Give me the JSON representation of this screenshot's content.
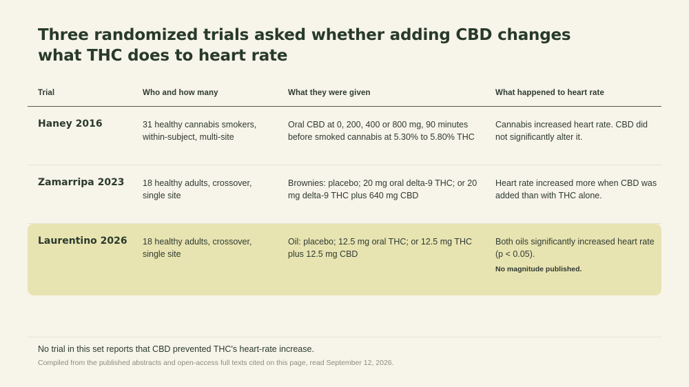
{
  "title": "Three randomized trials asked whether adding CBD changes what THC does to heart rate",
  "columns": [
    "Trial",
    "Who and how many",
    "What they were given",
    "What happened to heart rate"
  ],
  "rows": [
    {
      "trial": "Haney 2016",
      "who": "31 healthy cannabis smokers, within-subject, multi-site",
      "given": "Oral CBD at 0, 200, 400 or 800 mg, 90 minutes before smoked cannabis at 5.30% to 5.80% THC",
      "result": "Cannabis increased heart rate. CBD did not significantly alter it.",
      "note": ""
    },
    {
      "trial": "Zamarripa 2023",
      "who": "18 healthy adults, crossover, single site",
      "given": "Brownies: placebo; 20 mg oral delta-9 THC; or 20 mg delta-9 THC plus 640 mg CBD",
      "result": "Heart rate increased more when CBD was added than with THC alone.",
      "note": ""
    },
    {
      "trial": "Laurentino 2026",
      "who": "18 healthy adults, crossover, single site",
      "given": "Oil: placebo; 12.5 mg oral THC; or 12.5 mg THC plus 12.5 mg CBD",
      "result": "Both oils significantly increased heart rate (p < 0.05).",
      "note": "No magnitude published."
    }
  ],
  "footer": {
    "summary": "No trial in this set reports that CBD prevented THC's heart-rate increase.",
    "source": "Compiled from the published abstracts and open-access full texts cited on this page, read September 12, 2026."
  },
  "colors": {
    "background": "#f7f4ea",
    "highlight_row": "#e8e4b2",
    "text": "#2b3a2c",
    "muted_text": "#8a8d80"
  }
}
